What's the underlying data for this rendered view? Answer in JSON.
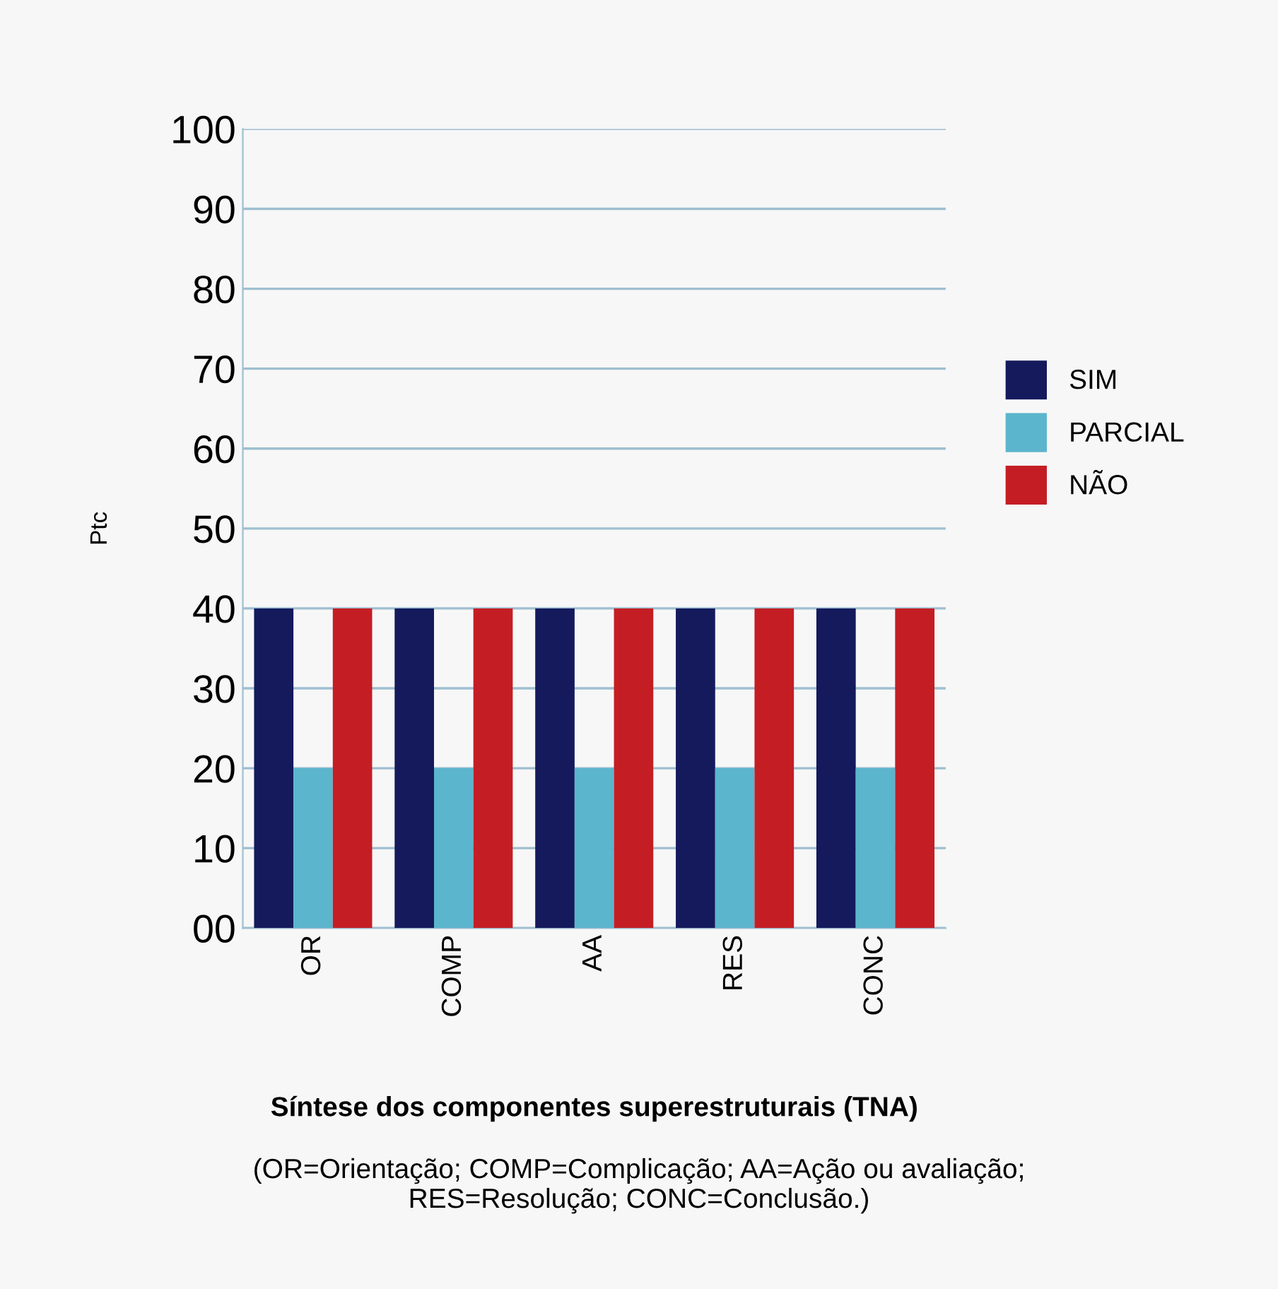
{
  "chart_data": {
    "type": "bar",
    "xlabel": "Síntese dos componentes superestruturais (TNA)",
    "ylabel": "Ptc",
    "categories": [
      "OR",
      "COMP",
      "AA",
      "RES",
      "CONC"
    ],
    "series": [
      {
        "name": "SIM",
        "color": "#141a5c",
        "values": [
          40,
          40,
          40,
          40,
          40
        ]
      },
      {
        "name": "PARCIAL",
        "color": "#5bb5cc",
        "values": [
          20,
          20,
          20,
          20,
          20
        ]
      },
      {
        "name": "NÃO",
        "color": "#c41e24",
        "values": [
          40,
          40,
          40,
          40,
          40
        ]
      }
    ],
    "ylim": [
      0,
      100
    ],
    "yticks": [
      {
        "value": 0,
        "label": "00"
      },
      10,
      20,
      30,
      40,
      50,
      60,
      70,
      80,
      90,
      100
    ],
    "grid": "y",
    "legend": "right",
    "annotations": [
      "(OR=Orientação; COMP=Complicação; AA=Ação ou avaliação;\nRES=Resolução; CONC=Conclusão.)"
    ]
  }
}
